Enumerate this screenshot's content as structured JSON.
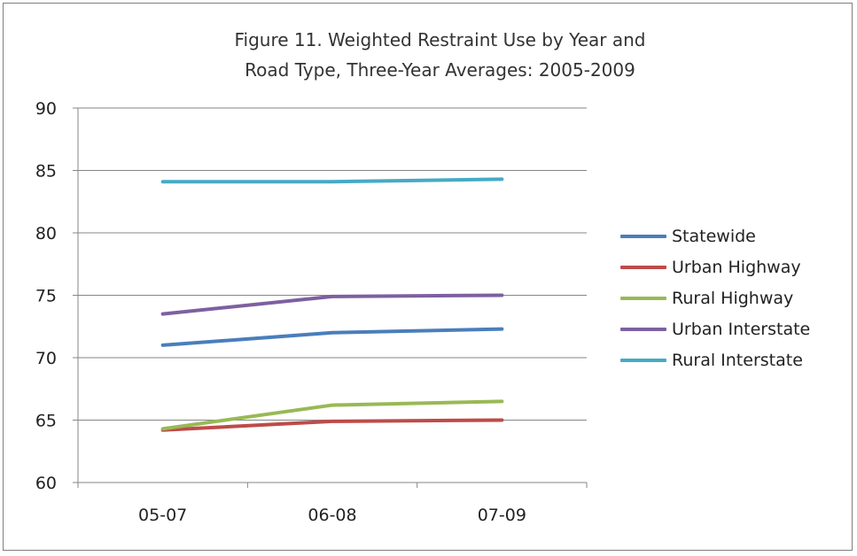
{
  "chart_data": {
    "type": "line",
    "title_line1": "Figure 11.  Weighted Restraint Use by Year and",
    "title_line2": "Road Type, Three-Year  Averages: 2005-2009",
    "categories": [
      "05-07",
      "06-08",
      "07-09"
    ],
    "y_ticks": [
      "60",
      "65",
      "70",
      "75",
      "80",
      "85",
      "90"
    ],
    "ylim": [
      60,
      90
    ],
    "grid": "horizontal",
    "legend_position": "right",
    "series": [
      {
        "name": "Statewide",
        "values": [
          71.0,
          72.0,
          72.3
        ],
        "color": "#4a7ebb"
      },
      {
        "name": "Urban Highway",
        "values": [
          64.2,
          64.9,
          65.0
        ],
        "color": "#be4b48"
      },
      {
        "name": "Rural Highway",
        "values": [
          64.3,
          66.2,
          66.5
        ],
        "color": "#98b954"
      },
      {
        "name": "Urban Interstate",
        "values": [
          73.5,
          74.9,
          75.0
        ],
        "color": "#7d60a0"
      },
      {
        "name": "Rural Interstate",
        "values": [
          84.1,
          84.1,
          84.3
        ],
        "color": "#46aac5"
      }
    ]
  }
}
